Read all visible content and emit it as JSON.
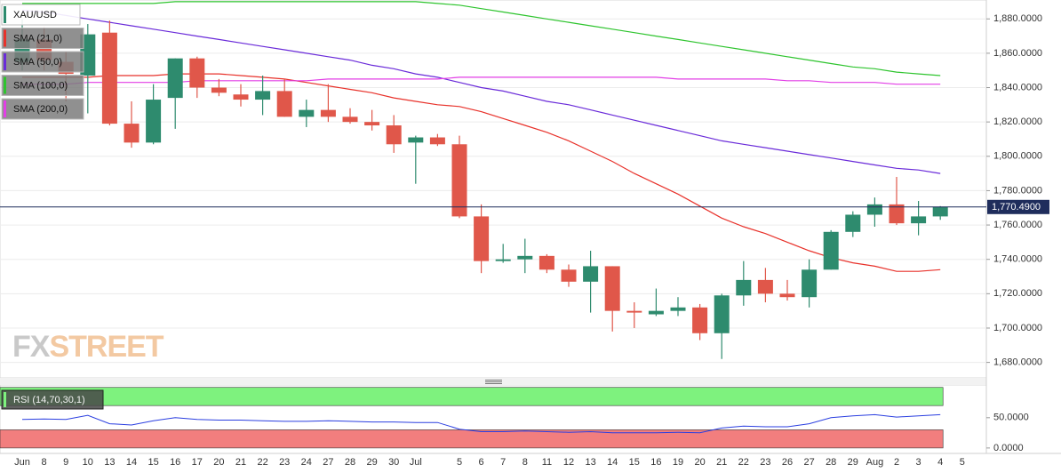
{
  "chart_data": [
    {
      "type": "candlestick",
      "symbol": "XAU/USD",
      "categories": [
        "Jun",
        "8",
        "9",
        "10",
        "13",
        "14",
        "15",
        "16",
        "17",
        "20",
        "21",
        "22",
        "23",
        "24",
        "27",
        "28",
        "29",
        "30",
        "Jul",
        null,
        "5",
        "6",
        "7",
        "8",
        "11",
        "12",
        "13",
        "14",
        "15",
        "16",
        "19",
        "20",
        "21",
        "22",
        "23",
        "26",
        "27",
        "28",
        "29",
        "Aug",
        "2",
        "3",
        "4",
        "5"
      ],
      "open": [
        1855,
        1868,
        1855,
        1847,
        1872,
        1819,
        1808,
        1834,
        1857,
        1840,
        1836,
        1833,
        1838,
        1823,
        1827,
        1823,
        1820,
        1818,
        1808,
        1811,
        1807,
        1765,
        1739,
        1740,
        1742,
        1734,
        1727,
        1736,
        1710,
        1708,
        1710,
        1712,
        1697,
        1719,
        1728,
        1720,
        1718,
        1734,
        1756,
        1766,
        1772,
        1761,
        1765,
        null
      ],
      "high": [
        1880,
        1875,
        1861,
        1877,
        1879,
        1832,
        1842,
        1857,
        1858,
        1845,
        1842,
        1847,
        1845,
        1833,
        1842,
        1828,
        1827,
        1824,
        1812,
        1813,
        1812,
        1772,
        1749,
        1752,
        1743,
        1737,
        1745,
        1736,
        1715,
        1723,
        1718,
        1714,
        1720,
        1739,
        1735,
        1728,
        1740,
        1757,
        1768,
        1776,
        1788,
        1774,
        1771,
        null
      ],
      "low": [
        1850,
        1850,
        1832,
        1825,
        1818,
        1805,
        1807,
        1816,
        1834,
        1835,
        1829,
        1824,
        1823,
        1817,
        1820,
        1819,
        1815,
        1802,
        1784,
        1806,
        1764,
        1732,
        1738,
        1732,
        1732,
        1724,
        1709,
        1698,
        1700,
        1707,
        1707,
        1693,
        1682,
        1713,
        1715,
        1716,
        1712,
        1734,
        1753,
        1759,
        1760,
        1754,
        1763,
        null
      ],
      "close": [
        1868,
        1856,
        1848,
        1871,
        1819,
        1808,
        1833,
        1857,
        1840,
        1837,
        1833,
        1838,
        1823,
        1827,
        1823,
        1820,
        1818,
        1807,
        1811,
        1807,
        1765,
        1739,
        1740,
        1742,
        1734,
        1727,
        1736,
        1710,
        1709,
        1710,
        1712,
        1697,
        1719,
        1728,
        1720,
        1718,
        1734,
        1756,
        1766,
        1772,
        1761,
        1765,
        1770.49,
        null
      ],
      "up_color": "#2e8b6e",
      "down_color": "#e0574a",
      "series": [
        {
          "name": "SMA (21,0)",
          "color": "#e8322b",
          "values": [
            1846,
            1846,
            1846,
            1846,
            1847,
            1847,
            1847,
            1848,
            1848,
            1848,
            1847,
            1846,
            1845,
            1843,
            1841,
            1839,
            1837,
            1834,
            1832,
            1830,
            1829,
            1826,
            1822,
            1818,
            1814,
            1809,
            1803,
            1797,
            1790,
            1784,
            1778,
            1771,
            1764,
            1759,
            1755,
            1750,
            1745,
            1741,
            1738,
            1736,
            1733,
            1733,
            1734,
            null
          ]
        },
        {
          "name": "SMA (50,0)",
          "color": "#6a2bd9",
          "values": [
            1885,
            1884,
            1882,
            1880,
            1878,
            1876,
            1874,
            1872,
            1870,
            1868,
            1866,
            1864,
            1862,
            1860,
            1858,
            1856,
            1853,
            1851,
            1848,
            1846,
            1843,
            1840,
            1838,
            1835,
            1832,
            1830,
            1827,
            1824,
            1821,
            1818,
            1815,
            1812,
            1809,
            1807,
            1805,
            1803,
            1801,
            1799,
            1797,
            1795,
            1793,
            1792,
            1790,
            null
          ]
        },
        {
          "name": "SMA (100,0)",
          "color": "#2ec42e",
          "values": [
            1889,
            1889,
            1889,
            1889,
            1889,
            1889,
            1889,
            1890,
            1890,
            1890,
            1890,
            1890,
            1890,
            1890,
            1890,
            1890,
            1890,
            1890,
            1890,
            1889,
            1888,
            1886,
            1884,
            1882,
            1880,
            1878,
            1876,
            1874,
            1872,
            1870,
            1868,
            1866,
            1864,
            1862,
            1860,
            1858,
            1856,
            1854,
            1852,
            1851,
            1849,
            1848,
            1847,
            null
          ]
        },
        {
          "name": "SMA (200,0)",
          "color": "#e23ee6",
          "values": [
            1842,
            1842,
            1842,
            1843,
            1843,
            1843,
            1843,
            1843,
            1844,
            1844,
            1844,
            1844,
            1844,
            1844,
            1845,
            1845,
            1845,
            1845,
            1845,
            1845,
            1846,
            1846,
            1846,
            1846,
            1846,
            1846,
            1846,
            1846,
            1846,
            1846,
            1845,
            1845,
            1845,
            1845,
            1845,
            1844,
            1844,
            1843,
            1843,
            1843,
            1842,
            1842,
            1842,
            null
          ]
        }
      ],
      "symbol_color": "#2e8b6e",
      "last_price": {
        "value": 1770.49,
        "label": "1,770.4900"
      },
      "last_price_color": "#1f2d5c",
      "ylim": [
        1671,
        1891
      ],
      "yticks": [
        {
          "value": 1680,
          "label": "1,680.0000"
        },
        {
          "value": 1700,
          "label": "1,700.0000"
        },
        {
          "value": 1720,
          "label": "1,720.0000"
        },
        {
          "value": 1740,
          "label": "1,740.0000"
        },
        {
          "value": 1760,
          "label": "1,760.0000"
        },
        {
          "value": 1780,
          "label": "1,780.0000"
        },
        {
          "value": 1800,
          "label": "1,800.0000"
        },
        {
          "value": 1820,
          "label": "1,820.0000"
        },
        {
          "value": 1840,
          "label": "1,840.0000"
        },
        {
          "value": 1860,
          "label": "1,860.0000"
        },
        {
          "value": 1880,
          "label": "1,880.0000"
        }
      ],
      "grid": true,
      "watermark": {
        "prefix": "FX",
        "suffix": "STREET"
      }
    },
    {
      "type": "line",
      "title": "RSI (14,70,30,1)",
      "color": "#2a3ee0",
      "values": [
        47,
        48,
        47,
        54,
        40,
        38,
        45,
        50,
        47,
        46,
        46,
        45,
        44,
        44,
        45,
        44,
        43,
        43,
        42,
        42,
        31,
        27,
        27,
        28,
        27,
        26,
        27,
        25,
        25,
        25,
        26,
        25,
        33,
        36,
        35,
        35,
        40,
        50,
        53,
        55,
        51,
        53,
        55,
        null
      ],
      "bands": [
        {
          "from": 70,
          "to": 100,
          "color": "#7ef27e"
        },
        {
          "from": 0,
          "to": 30,
          "color": "#f27e7e"
        }
      ],
      "ylim": [
        -9,
        104
      ],
      "yticks": [
        {
          "value": 0,
          "label": "0.0000"
        },
        {
          "value": 50,
          "label": "50.0000"
        }
      ]
    }
  ]
}
